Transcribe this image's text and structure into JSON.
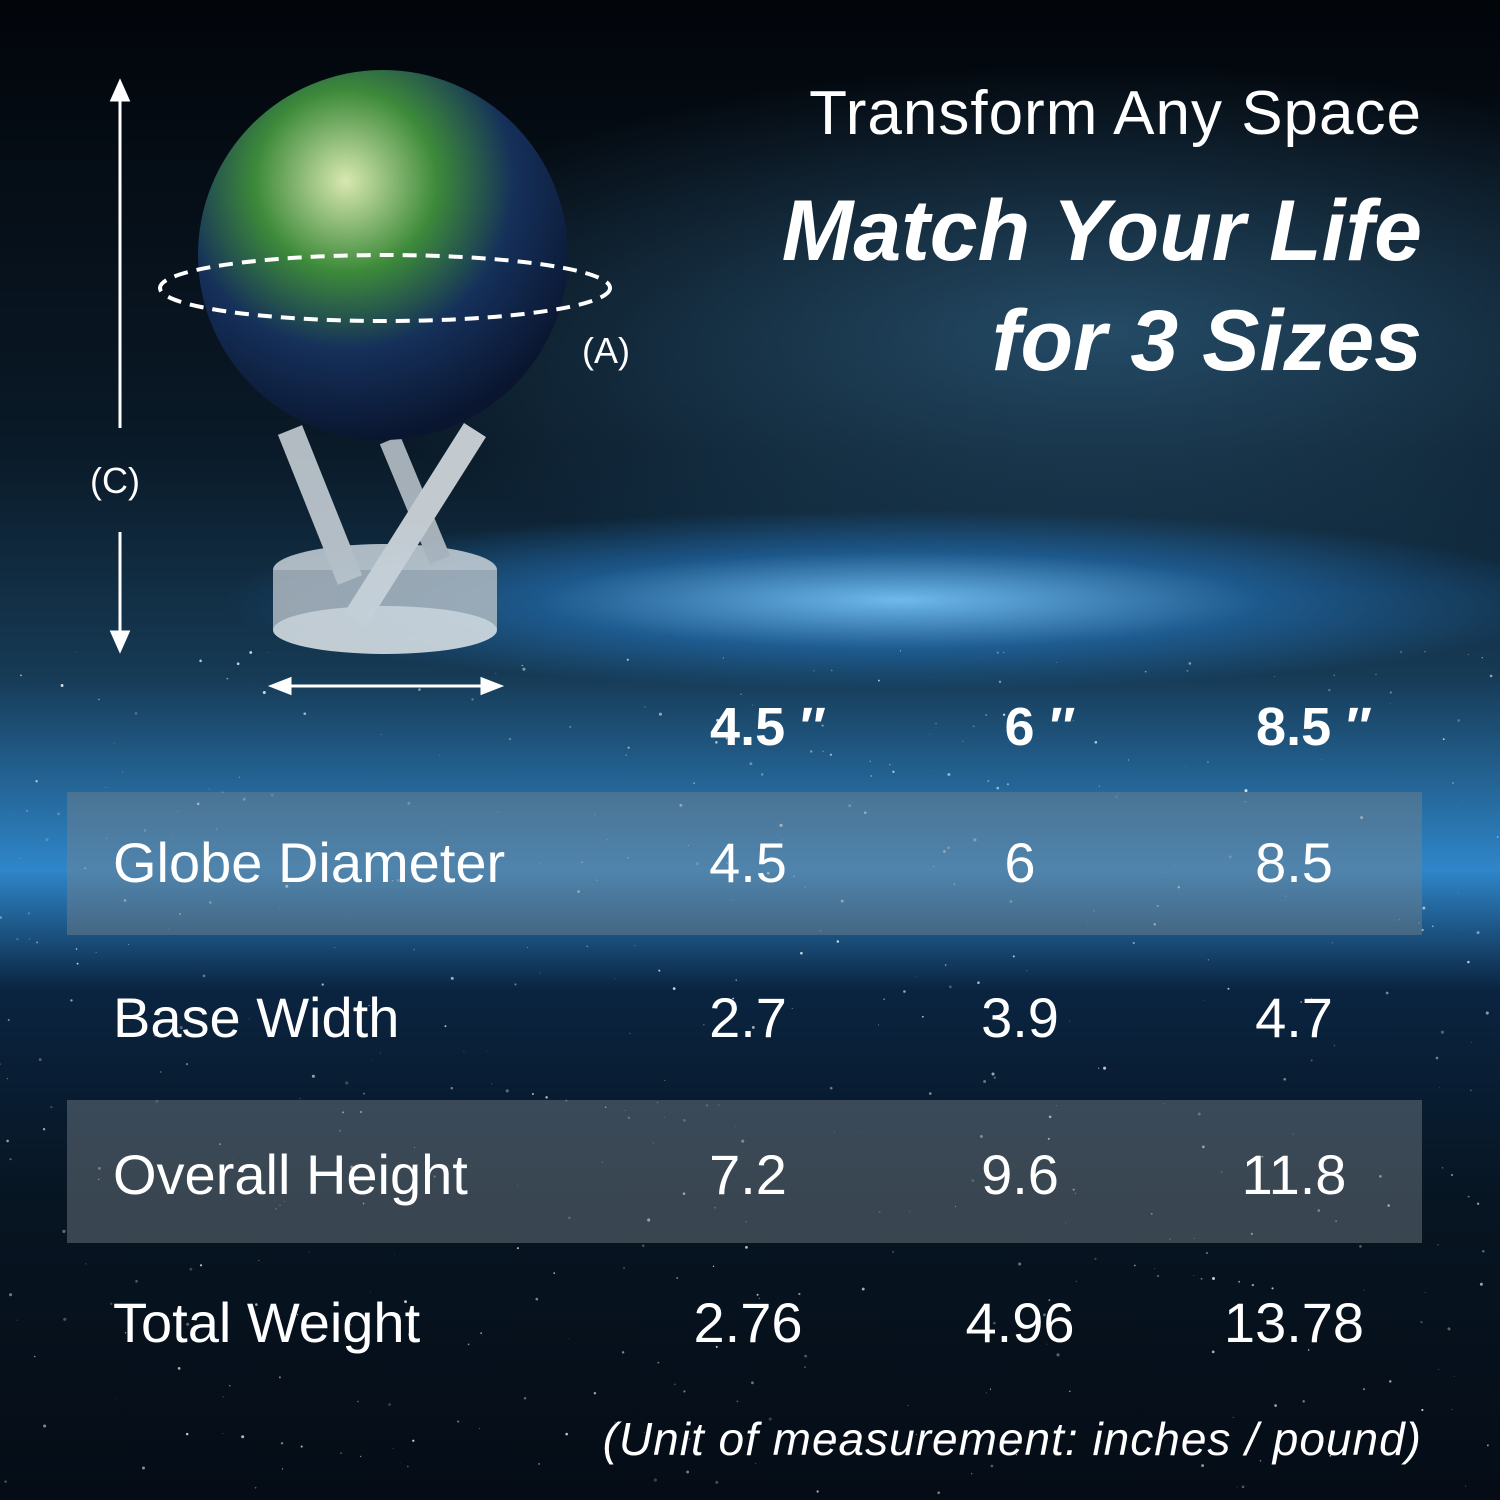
{
  "heading": {
    "line1": "Transform Any Space",
    "line2": "Match Your Life",
    "line3": "for 3 Sizes"
  },
  "dimension_labels": {
    "a": "(A)",
    "c": "(C)"
  },
  "table": {
    "columns": [
      "4.5 ″",
      "6 ″",
      "8.5 ″"
    ],
    "rows": [
      {
        "label": "Globe Diameter",
        "values": [
          "4.5",
          "6",
          "8.5"
        ]
      },
      {
        "label": "Base Width",
        "values": [
          "2.7",
          "3.9",
          "4.7"
        ]
      },
      {
        "label": "Overall Height",
        "values": [
          "7.2",
          "9.6",
          "11.8"
        ]
      },
      {
        "label": "Total Weight",
        "values": [
          "2.76",
          "4.96",
          "13.78"
        ]
      }
    ]
  },
  "footnote": "(Unit of measurement: inches / pound)",
  "colors": {
    "row_band": "#5e666e",
    "text": "#ffffff",
    "horizon": "#4aa8ee"
  }
}
